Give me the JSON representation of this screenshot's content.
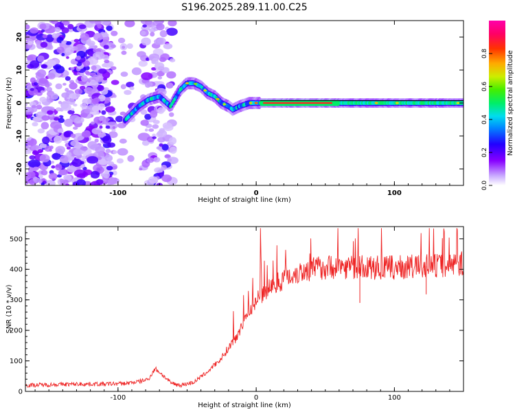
{
  "title": "S196.2025.289.11.00.C25",
  "colorbar": {
    "label": "Normalized spectral amplitude",
    "ticks": [
      "0.0",
      "0.2",
      "0.4",
      "0.6",
      "0.8"
    ],
    "range": [
      0,
      1
    ]
  },
  "chart_data": [
    {
      "type": "heatmap",
      "title": "",
      "xlabel": "Height of straight line (km)",
      "ylabel": "Frequency (Hz)",
      "xlim": [
        -167,
        150
      ],
      "ylim": [
        -25,
        25
      ],
      "xticks": [
        "-100",
        "0",
        "100"
      ],
      "yticks": [
        "-20",
        "-10",
        "0",
        "10",
        "20"
      ],
      "description_series": {
        "name": "dominant frequency ridge",
        "x": [
          -92,
          -85,
          -78,
          -70,
          -62,
          -55,
          -50,
          -45,
          -40,
          -35,
          -30,
          -25,
          -20,
          -17,
          -12,
          -5,
          0,
          10,
          30,
          60,
          100,
          150
        ],
        "y": [
          -4,
          -1,
          1,
          2,
          -1,
          4,
          6,
          6,
          5,
          3,
          2,
          0,
          -1,
          -2,
          -1,
          0,
          0,
          0,
          0,
          0,
          0,
          0
        ]
      }
    },
    {
      "type": "line",
      "title": "",
      "xlabel": "Height of straight line (km)",
      "ylabel": "SNR (10 * v/v)",
      "xlim": [
        -167,
        150
      ],
      "ylim": [
        0,
        540
      ],
      "xticks": [
        "-100",
        "0",
        "100"
      ],
      "yticks": [
        "0",
        "100",
        "200",
        "300",
        "400",
        "500"
      ],
      "series": [
        {
          "name": "SNR",
          "color": "#ee2222",
          "x": [
            -167,
            -150,
            -130,
            -110,
            -95,
            -85,
            -78,
            -73,
            -68,
            -62,
            -55,
            -45,
            -35,
            -25,
            -15,
            -8,
            0,
            10,
            20,
            30,
            45,
            60,
            80,
            100,
            120,
            140,
            150
          ],
          "y": [
            20,
            22,
            24,
            24,
            26,
            32,
            40,
            75,
            55,
            28,
            20,
            30,
            65,
            110,
            175,
            240,
            300,
            340,
            370,
            390,
            405,
            410,
            405,
            405,
            410,
            415,
            420
          ]
        }
      ]
    }
  ]
}
